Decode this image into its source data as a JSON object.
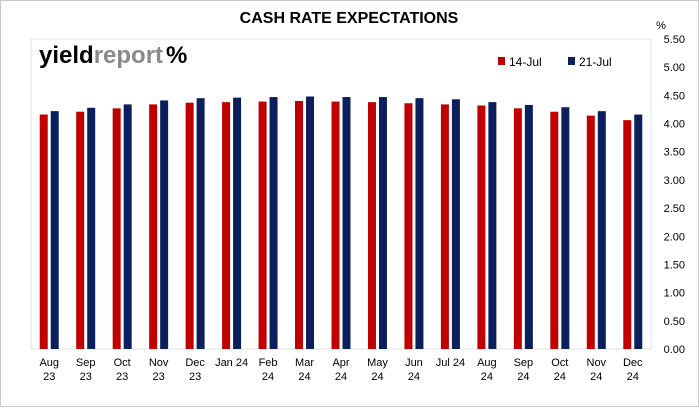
{
  "logo": {
    "text_a": "yield",
    "text_b": "report",
    "symbol": "%"
  },
  "colors": {
    "series_a": "#C00000",
    "series_b": "#0B1F5C",
    "grid": "#d9d9d9",
    "logo_green": "#4e9a2f",
    "logo_red": "#c00000"
  },
  "chart_data": {
    "type": "bar",
    "title": "CASH RATE EXPECTATIONS",
    "ylabel": "%",
    "xlabel": "",
    "ylim": [
      0,
      5.5
    ],
    "ytick_step": 0.5,
    "yticks": [
      "0.00",
      "0.50",
      "1.00",
      "1.50",
      "2.00",
      "2.50",
      "3.00",
      "3.50",
      "4.00",
      "4.50",
      "5.00",
      "5.50"
    ],
    "grid": false,
    "legend_position": "top-right",
    "categories": [
      [
        "Aug",
        "23"
      ],
      [
        "Sep",
        "23"
      ],
      [
        "Oct",
        "23"
      ],
      [
        "Nov",
        "23"
      ],
      [
        "Dec",
        "23"
      ],
      [
        "Jan 24",
        ""
      ],
      [
        "Feb",
        "24"
      ],
      [
        "Mar",
        "24"
      ],
      [
        "Apr",
        "24"
      ],
      [
        "May",
        "24"
      ],
      [
        "Jun",
        "24"
      ],
      [
        "Jul 24",
        ""
      ],
      [
        "Aug",
        "24"
      ],
      [
        "Sep",
        "24"
      ],
      [
        "Oct",
        "24"
      ],
      [
        "Nov",
        "24"
      ],
      [
        "Dec",
        "24"
      ]
    ],
    "series": [
      {
        "name": "14-Jul",
        "values": [
          4.16,
          4.21,
          4.27,
          4.34,
          4.37,
          4.38,
          4.39,
          4.4,
          4.39,
          4.38,
          4.36,
          4.34,
          4.32,
          4.27,
          4.21,
          4.14,
          4.06
        ]
      },
      {
        "name": "21-Jul",
        "values": [
          4.22,
          4.28,
          4.34,
          4.41,
          4.45,
          4.46,
          4.47,
          4.48,
          4.47,
          4.47,
          4.45,
          4.43,
          4.38,
          4.33,
          4.29,
          4.22,
          4.16
        ]
      }
    ]
  }
}
